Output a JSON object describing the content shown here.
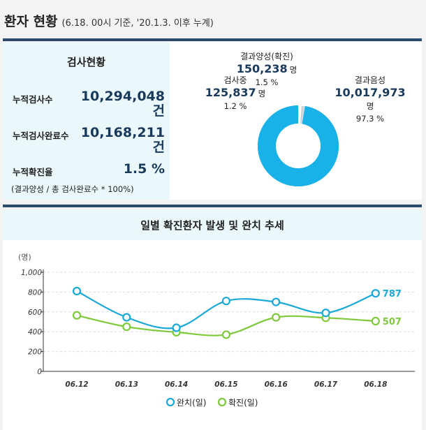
{
  "header": {
    "title": "환자 현황",
    "subtitle": "(6.18. 00시 기준, '20.1.3. 이후 누계)"
  },
  "summary": {
    "title": "검사현황",
    "rows": [
      {
        "label": "누적검사수",
        "value": "10,294,048\n건"
      },
      {
        "label": "누적검사완료수",
        "value": "10,168,211\n건"
      },
      {
        "label": "누적확진율",
        "value": "1.5 %"
      }
    ],
    "note": "(결과양성 / 총 검사완료수 * 100%)"
  },
  "donut": {
    "unit": "명",
    "segments": [
      {
        "label": "결과양성(확진)",
        "value": "150,238",
        "percent": "1.5 %",
        "ratio": 0.015,
        "color": "#cfd3d7"
      },
      {
        "label": "검사중",
        "value": "125,837",
        "percent": "1.2 %",
        "ratio": 0.012,
        "color": "#ffffff"
      },
      {
        "label": "결과음성",
        "value": "10,017,973",
        "percent": "97.3 %",
        "ratio": 0.973,
        "color": "#18b1e8"
      }
    ]
  },
  "chart_title": "일별 확진환자 발생 및 완치 추세",
  "chart_data": {
    "type": "line",
    "title": "일별 확진환자 발생 및 완치 추세",
    "ylabel": "(명)",
    "ylim": [
      0,
      1000
    ],
    "yticks": [
      "0",
      "200",
      "400",
      "600",
      "800",
      "1,000"
    ],
    "categories": [
      "06.12",
      "06.13",
      "06.14",
      "06.15",
      "06.16",
      "06.17",
      "06.18"
    ],
    "series": [
      {
        "name": "완치(일)",
        "color": "#19a8d8",
        "values": [
          810,
          545,
          440,
          710,
          700,
          590,
          787
        ],
        "end_label": "787"
      },
      {
        "name": "확진(일)",
        "color": "#7ec93a",
        "values": [
          565,
          450,
          395,
          370,
          545,
          540,
          507
        ],
        "end_label": "507"
      }
    ],
    "legend": "bottom"
  }
}
